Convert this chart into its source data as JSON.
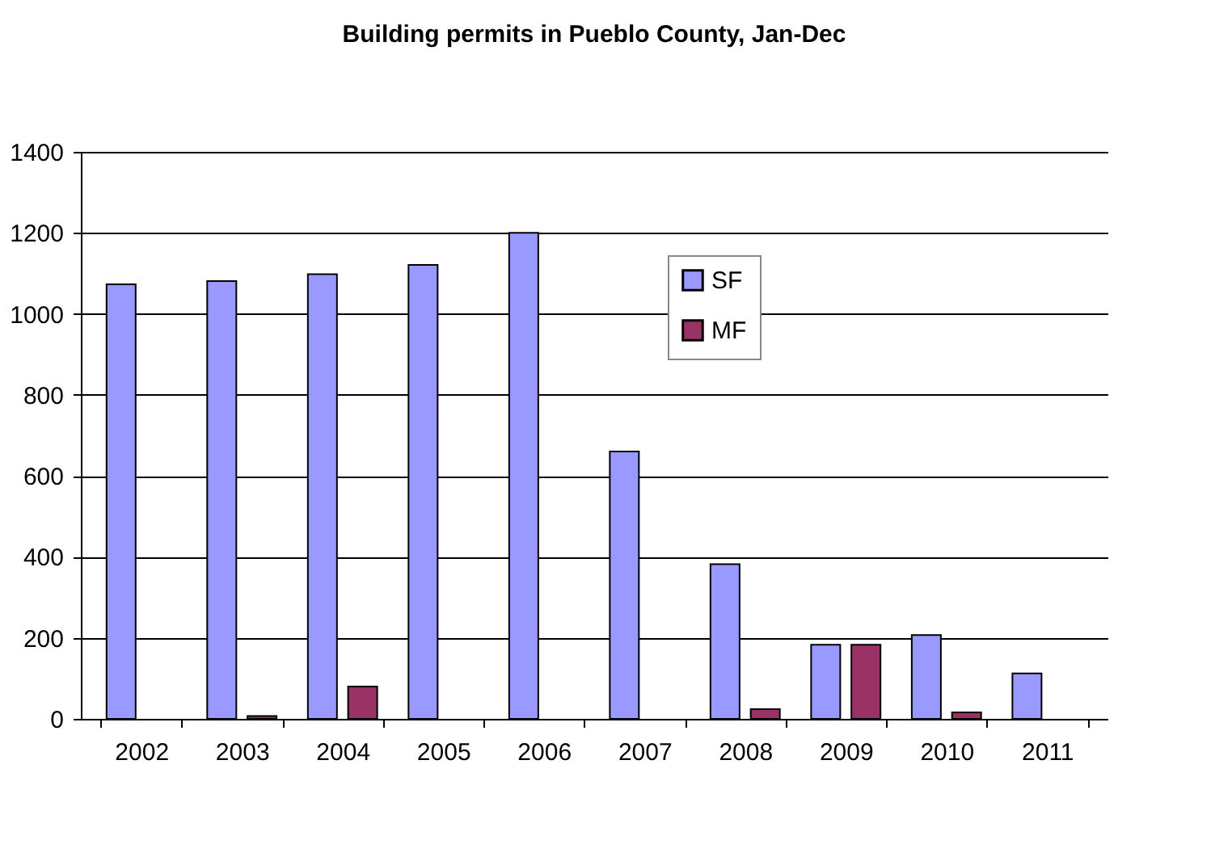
{
  "chart_data": {
    "type": "bar",
    "title": "Building permits in Pueblo County, Jan-Dec",
    "categories": [
      "2002",
      "2003",
      "2004",
      "2005",
      "2006",
      "2007",
      "2008",
      "2009",
      "2010",
      "2011"
    ],
    "series": [
      {
        "name": "SF",
        "color": "#9999ff",
        "values": [
          1073,
          1081,
          1098,
          1121,
          1200,
          660,
          382,
          183,
          207,
          112
        ]
      },
      {
        "name": "MF",
        "color": "#993366",
        "values": [
          null,
          7,
          80,
          null,
          null,
          null,
          24,
          183,
          16,
          null
        ]
      }
    ],
    "ylim": [
      0,
      1400
    ],
    "yticks": [
      0,
      200,
      400,
      600,
      800,
      1000,
      1200,
      1400
    ],
    "grid": "y",
    "legend": "top right"
  }
}
